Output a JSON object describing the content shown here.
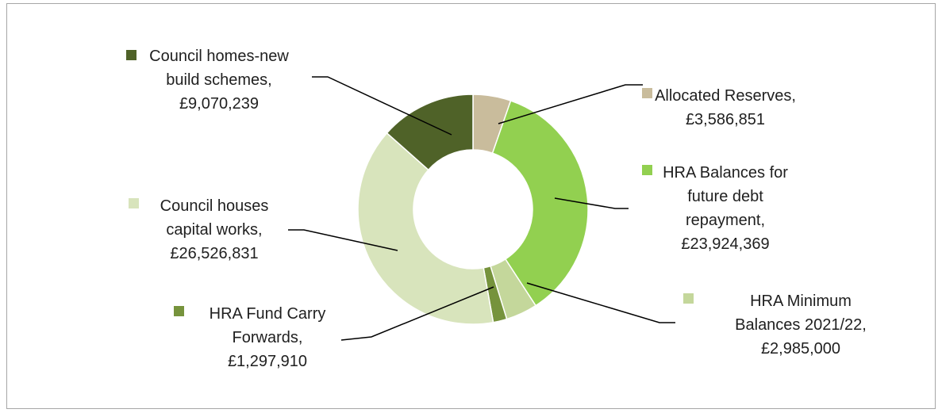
{
  "chart_data": {
    "type": "pie",
    "donut": true,
    "title": "",
    "slices": [
      {
        "name": "Allocated Reserves",
        "value": 3586851,
        "value_label": "£3,586,851",
        "color": "#c9bc9c",
        "label_lines": [
          "Allocated Reserves,",
          "£3,586,851"
        ]
      },
      {
        "name": "HRA Balances for future debt repayment",
        "value": 23924369,
        "value_label": "£23,924,369",
        "color": "#92d050",
        "label_lines": [
          "HRA Balances for",
          "future debt",
          "repayment,",
          "£23,924,369"
        ]
      },
      {
        "name": "HRA Minimum Balances 2021/22",
        "value": 2985000,
        "value_label": "£2,985,000",
        "color": "#c4d79b",
        "label_lines": [
          "HRA Minimum",
          "Balances 2021/22,",
          "£2,985,000"
        ]
      },
      {
        "name": "HRA Fund Carry Forwards",
        "value": 1297910,
        "value_label": "£1,297,910",
        "color": "#76933c",
        "label_lines": [
          "HRA Fund Carry",
          "Forwards,",
          "£1,297,910"
        ]
      },
      {
        "name": "Council houses capital works",
        "value": 26526831,
        "value_label": "£26,526,831",
        "color": "#d8e4bc",
        "label_lines": [
          "Council houses",
          "capital works,",
          "£26,526,831"
        ]
      },
      {
        "name": "Council homes-new build schemes",
        "value": 9070239,
        "value_label": "£9,070,239",
        "color": "#4f6228",
        "label_lines": [
          "Council homes-new",
          "build schemes,",
          "£9,070,239"
        ]
      }
    ]
  }
}
